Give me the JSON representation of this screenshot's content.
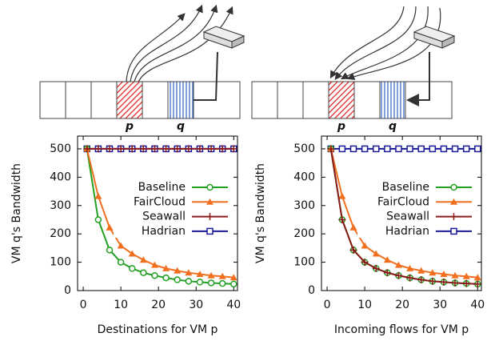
{
  "diagrams": [
    [
      "p",
      "q"
    ],
    [
      "p",
      "q"
    ]
  ],
  "chart_data": [
    {
      "type": "line",
      "xlabel": "Destinations for VM p",
      "ylabel": "VM q's Bandwidth",
      "x": [
        1,
        4,
        7,
        10,
        13,
        16,
        19,
        22,
        25,
        28,
        31,
        34,
        37,
        40
      ],
      "series": [
        {
          "name": "Baseline",
          "color": "#22a022",
          "marker": "circle",
          "values": [
            500,
            250,
            143,
            100,
            78,
            63,
            53,
            45,
            38,
            33,
            30,
            27,
            25,
            23
          ]
        },
        {
          "name": "FairCloud",
          "color": "#f07020",
          "marker": "triangle",
          "values": [
            500,
            333,
            222,
            158,
            130,
            108,
            90,
            78,
            70,
            63,
            58,
            53,
            50,
            46
          ]
        },
        {
          "name": "Seawall",
          "color": "#8b1a1a",
          "marker": "plus",
          "values": [
            500,
            500,
            500,
            500,
            500,
            500,
            500,
            500,
            500,
            500,
            500,
            500,
            500,
            500
          ]
        },
        {
          "name": "Hadrian",
          "color": "#1a1a9a",
          "marker": "square",
          "values": [
            500,
            500,
            500,
            500,
            500,
            500,
            500,
            500,
            500,
            500,
            500,
            500,
            500,
            500
          ]
        }
      ],
      "xlim": [
        -1.5,
        41
      ],
      "ylim": [
        0,
        545
      ],
      "xticks": [
        0,
        10,
        20,
        30,
        40
      ],
      "yticks": [
        0,
        100,
        200,
        300,
        400,
        500
      ]
    },
    {
      "type": "line",
      "xlabel": "Incoming flows for VM p",
      "ylabel": "VM q's Bandwidth",
      "x": [
        1,
        4,
        7,
        10,
        13,
        16,
        19,
        22,
        25,
        28,
        31,
        34,
        37,
        40
      ],
      "series": [
        {
          "name": "Baseline",
          "color": "#22a022",
          "marker": "circle",
          "values": [
            500,
            250,
            143,
            100,
            78,
            63,
            53,
            45,
            38,
            33,
            30,
            27,
            25,
            23
          ]
        },
        {
          "name": "FairCloud",
          "color": "#f07020",
          "marker": "triangle",
          "values": [
            500,
            333,
            222,
            158,
            130,
            108,
            90,
            78,
            70,
            63,
            58,
            53,
            50,
            46
          ]
        },
        {
          "name": "Seawall",
          "color": "#8b1a1a",
          "marker": "plus",
          "values": [
            500,
            250,
            143,
            100,
            78,
            63,
            53,
            45,
            38,
            33,
            30,
            27,
            25,
            23
          ]
        },
        {
          "name": "Hadrian",
          "color": "#1a1a9a",
          "marker": "square",
          "values": [
            500,
            500,
            500,
            500,
            500,
            500,
            500,
            500,
            500,
            500,
            500,
            500,
            500,
            500
          ]
        }
      ],
      "xlim": [
        -1.5,
        41
      ],
      "ylim": [
        0,
        545
      ],
      "xticks": [
        0,
        10,
        20,
        30,
        40
      ],
      "yticks": [
        0,
        100,
        200,
        300,
        400,
        500
      ]
    }
  ]
}
